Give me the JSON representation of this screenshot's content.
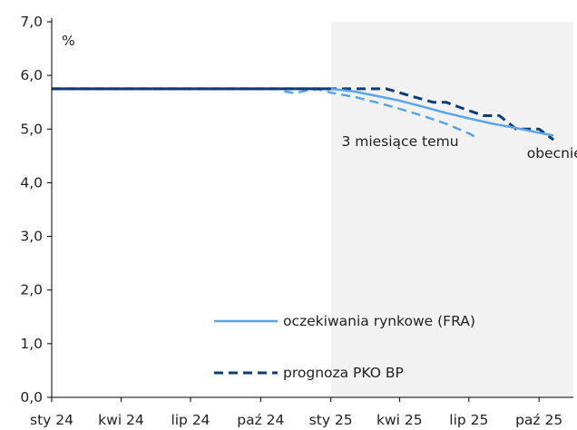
{
  "chart_data": {
    "type": "line",
    "unit_label": "%",
    "ylim": [
      0,
      7
    ],
    "y_ticks": [
      "0,0",
      "1,0",
      "2,0",
      "3,0",
      "4,0",
      "5,0",
      "6,0",
      "7,0"
    ],
    "y_tick_values": [
      0,
      1,
      2,
      3,
      4,
      5,
      6,
      7
    ],
    "x_range": [
      "2024-01-01",
      "2025-11-15"
    ],
    "x_ticks": [
      {
        "label": "sty 24",
        "date": "2024-01-01"
      },
      {
        "label": "kwi 24",
        "date": "2024-04-01"
      },
      {
        "label": "lip 24",
        "date": "2024-07-01"
      },
      {
        "label": "paź 24",
        "date": "2024-10-01"
      },
      {
        "label": "sty 25",
        "date": "2025-01-01"
      },
      {
        "label": "kwi 25",
        "date": "2025-04-01"
      },
      {
        "label": "lip 25",
        "date": "2025-07-01"
      },
      {
        "label": "paź 25",
        "date": "2025-10-01"
      }
    ],
    "shaded_region": {
      "from": "2025-01-01",
      "to": "2025-11-15",
      "color": "#f2f2f2"
    },
    "legend": [
      {
        "label": "oczekiwania rynkowe (FRA)",
        "style": "solid",
        "color": "#5aa5e6"
      },
      {
        "label": "prognoza PKO BP",
        "style": "dashed",
        "color": "#0d3a78"
      }
    ],
    "annotations": [
      {
        "text": "3 miesiące temu",
        "x": "2025-01-15",
        "y": 4.77
      },
      {
        "text": "obecnie",
        "x": "2025-09-15",
        "y": 4.55
      }
    ],
    "series": [
      {
        "name": "prognoza PKO BP",
        "style": "dashed",
        "color": "#0d3a78",
        "width": 3,
        "x": [
          "2024-01-01",
          "2024-12-31",
          "2025-01-01",
          "2025-03-01",
          "2025-03-15",
          "2025-04-20",
          "2025-05-15",
          "2025-06-01",
          "2025-06-20",
          "2025-07-20",
          "2025-08-10",
          "2025-09-01",
          "2025-10-01",
          "2025-10-20"
        ],
        "y": [
          5.75,
          5.75,
          5.75,
          5.75,
          5.75,
          5.6,
          5.5,
          5.5,
          5.4,
          5.25,
          5.25,
          5.0,
          5.0,
          4.8
        ]
      },
      {
        "name": "3 miesiące temu",
        "style": "dashed",
        "color": "#5aa5e6",
        "width": 2.5,
        "x": [
          "2024-11-01",
          "2024-11-15",
          "2024-12-01",
          "2024-12-15",
          "2025-01-01",
          "2025-02-01",
          "2025-03-01",
          "2025-04-01",
          "2025-05-01",
          "2025-06-01",
          "2025-07-01",
          "2025-07-10"
        ],
        "y": [
          5.7,
          5.67,
          5.72,
          5.74,
          5.68,
          5.6,
          5.5,
          5.38,
          5.25,
          5.1,
          4.92,
          4.85
        ]
      },
      {
        "name": "oczekiwania rynkowe (FRA)",
        "style": "solid",
        "color": "#5aa5e6",
        "width": 2.5,
        "x": [
          "2024-01-01",
          "2025-01-01",
          "2025-02-01",
          "2025-03-01",
          "2025-04-01",
          "2025-05-01",
          "2025-06-01",
          "2025-07-01",
          "2025-08-01",
          "2025-09-01",
          "2025-10-01",
          "2025-10-20"
        ],
        "y": [
          5.75,
          5.75,
          5.7,
          5.62,
          5.53,
          5.42,
          5.3,
          5.2,
          5.1,
          5.02,
          4.93,
          4.88
        ]
      },
      {
        "name": "prognoza PKO BP (history)",
        "style": "solid",
        "color": "#0d3a78",
        "width": 3,
        "x": [
          "2024-01-01",
          "2025-01-01"
        ],
        "y": [
          5.75,
          5.75
        ]
      }
    ]
  }
}
